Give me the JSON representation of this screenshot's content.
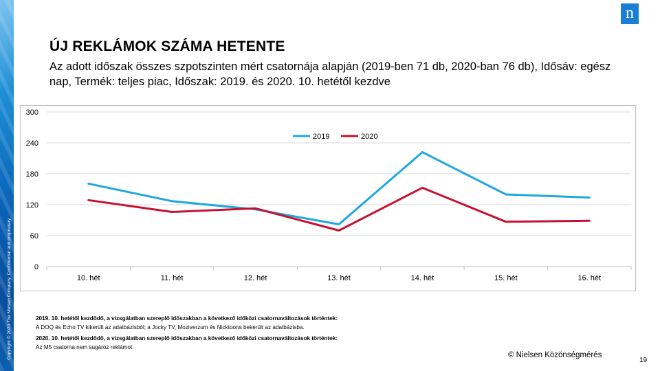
{
  "header": {
    "title": "ÚJ REKLÁMOK SZÁMA HETENTE",
    "subtitle": "Az adott időszak összes szpotszinten mért csatornája alapján (2019-ben 71 db, 2020-ban 76 db), Idősáv: egész nap, Termék: teljes piac, Időszak: 2019. és 2020. 10. hetétől kezdve"
  },
  "logo_text": "n",
  "copyright": "Copyright © 2020 The Nielsen Company. Confidential and proprietary.",
  "chart_data": {
    "type": "line",
    "categories": [
      "10. hét",
      "11. hét",
      "12. hét",
      "13. hét",
      "14. hét",
      "15. hét",
      "16. hét"
    ],
    "series": [
      {
        "name": "2019",
        "color": "#1ea7e1",
        "values": [
          161,
          127,
          111,
          82,
          222,
          140,
          134
        ]
      },
      {
        "name": "2020",
        "color": "#c8102e",
        "values": [
          129,
          106,
          113,
          70,
          153,
          87,
          89
        ]
      }
    ],
    "yticks": [
      0,
      60,
      120,
      180,
      240,
      300
    ],
    "ylim": [
      0,
      300
    ],
    "grid": true,
    "legend_position": "top-center"
  },
  "notes": [
    {
      "head": "2019. 10. hetétől kezdődő, a vizsgálatban szereplő időszakban a következő időközi csatornaváltozások történtek:",
      "text": "A DOQ és Echo TV kikerült az adatbázisból; a Jocky TV, Moziverzum és Nicktoons bekerült az adatbázisba."
    },
    {
      "head": "2020. 10. hetétől kezdődő, a vizsgálatban szereplő időszakban a következő időközi csatornaváltozások történtek:",
      "text": "Az M5 csatorna nem sugároz reklámot."
    }
  ],
  "footer": {
    "source": "© Nielsen Közönségmérés",
    "page_number": "19"
  }
}
